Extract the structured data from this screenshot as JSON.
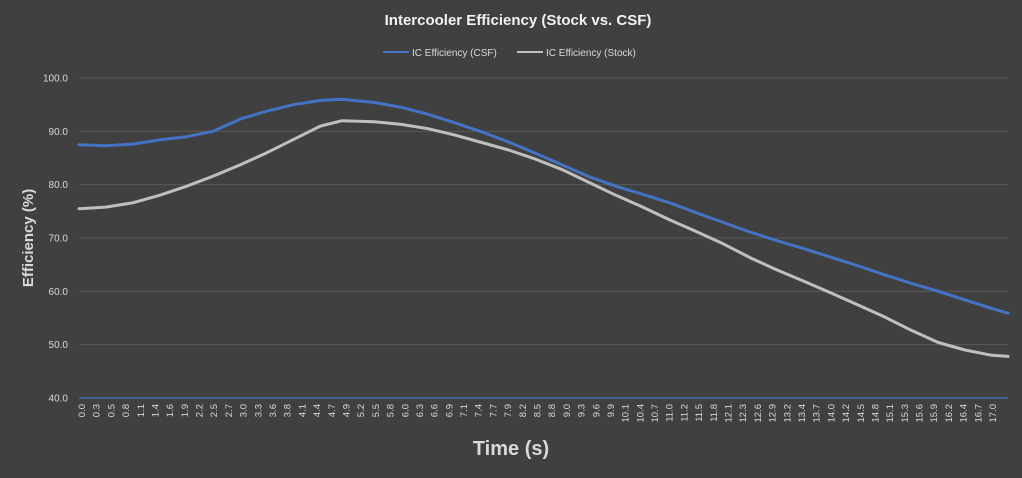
{
  "colors": {
    "background": "#404040",
    "gridline": "#595959",
    "text": "#d9d9d9",
    "title": "#f2f2f2",
    "csf": "#4472c4",
    "stock": "#bfbfbf",
    "baseline": "#4472c4"
  },
  "chart_data": {
    "type": "line",
    "title": "Intercooler Efficiency (Stock vs. CSF)",
    "xlabel": "Time (s)",
    "ylabel": "Efficiency (%)",
    "ylim": [
      40,
      100
    ],
    "yticks": [
      "40.0",
      "50.0",
      "60.0",
      "70.0",
      "80.0",
      "90.0",
      "100.0"
    ],
    "xlim": [
      0,
      17.3
    ],
    "xticks": [
      "0.0",
      "0.3",
      "0.5",
      "0.8",
      "1.1",
      "1.4",
      "1.6",
      "1.9",
      "2.2",
      "2.5",
      "2.7",
      "3.0",
      "3.3",
      "3.6",
      "3.8",
      "4.1",
      "4.4",
      "4.7",
      "4.9",
      "5.2",
      "5.5",
      "5.8",
      "6.0",
      "6.3",
      "6.6",
      "6.9",
      "7.1",
      "7.4",
      "7.7",
      "7.9",
      "8.2",
      "8.5",
      "8.8",
      "9.0",
      "9.3",
      "9.6",
      "9.9",
      "10.1",
      "10.4",
      "10.7",
      "11.0",
      "11.2",
      "11.5",
      "11.8",
      "12.1",
      "12.3",
      "12.6",
      "12.9",
      "13.2",
      "13.4",
      "13.7",
      "14.0",
      "14.2",
      "14.5",
      "14.8",
      "15.1",
      "15.3",
      "15.6",
      "15.9",
      "16.2",
      "16.4",
      "16.7",
      "17.0"
    ],
    "grid": true,
    "legend_position": "top",
    "series": [
      {
        "name": "IC Efficiency (CSF)",
        "x": [
          0,
          0.5,
          1.0,
          1.5,
          2.0,
          2.5,
          3.0,
          3.5,
          4.0,
          4.5,
          4.9,
          5.5,
          6.0,
          6.5,
          7.0,
          7.5,
          8.0,
          8.5,
          9.0,
          9.5,
          10.0,
          10.5,
          11.0,
          11.5,
          12.0,
          12.5,
          13.0,
          13.5,
          14.0,
          14.5,
          15.0,
          15.5,
          16.0,
          16.5,
          17.0,
          17.3
        ],
        "y": [
          87.5,
          87.3,
          87.6,
          88.4,
          89.0,
          90.0,
          92.3,
          93.8,
          95.0,
          95.8,
          96.0,
          95.4,
          94.5,
          93.2,
          91.6,
          89.9,
          88.0,
          85.9,
          83.7,
          81.5,
          79.7,
          78.2,
          76.6,
          74.7,
          72.9,
          71.1,
          69.5,
          68.0,
          66.4,
          64.8,
          63.1,
          61.5,
          60.0,
          58.4,
          56.8,
          55.9
        ]
      },
      {
        "name": "IC Efficiency (Stock)",
        "x": [
          0,
          0.5,
          1.0,
          1.5,
          2.0,
          2.5,
          3.0,
          3.5,
          4.0,
          4.5,
          4.9,
          5.5,
          6.0,
          6.5,
          7.0,
          7.5,
          8.0,
          8.5,
          9.0,
          9.5,
          10.0,
          10.5,
          11.0,
          11.5,
          12.0,
          12.5,
          13.0,
          13.5,
          14.0,
          14.5,
          15.0,
          15.5,
          16.0,
          16.5,
          17.0,
          17.3
        ],
        "y": [
          75.5,
          75.8,
          76.6,
          78.0,
          79.7,
          81.6,
          83.7,
          86.0,
          88.5,
          91.0,
          92.0,
          91.8,
          91.3,
          90.5,
          89.3,
          87.9,
          86.5,
          84.8,
          82.8,
          80.4,
          78.0,
          75.8,
          73.4,
          71.2,
          68.9,
          66.3,
          64.0,
          61.9,
          59.7,
          57.5,
          55.2,
          52.7,
          50.4,
          49.0,
          48.0,
          47.8
        ]
      }
    ]
  }
}
